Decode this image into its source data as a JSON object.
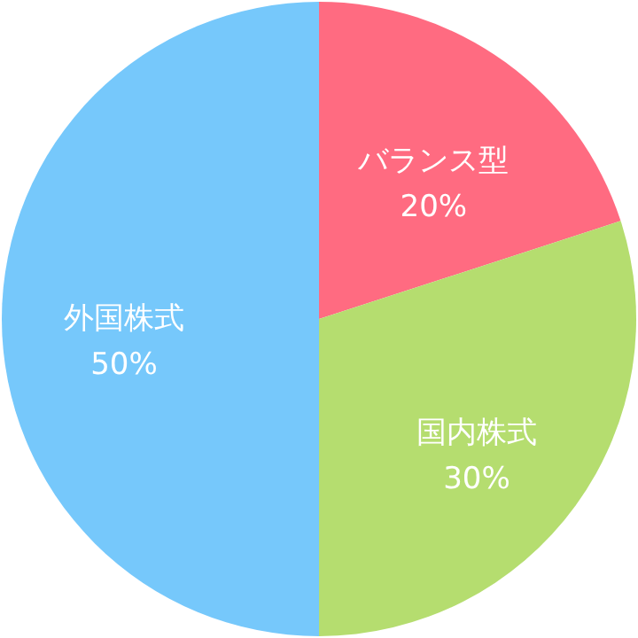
{
  "chart_data": {
    "type": "pie",
    "categories": [
      "バランス型",
      "国内株式",
      "外国株式"
    ],
    "values": [
      20,
      30,
      50
    ],
    "colors": [
      "#ff6b81",
      "#b5dd6f",
      "#76c8fb"
    ],
    "value_labels": [
      "20%",
      "30%",
      "50%"
    ]
  }
}
